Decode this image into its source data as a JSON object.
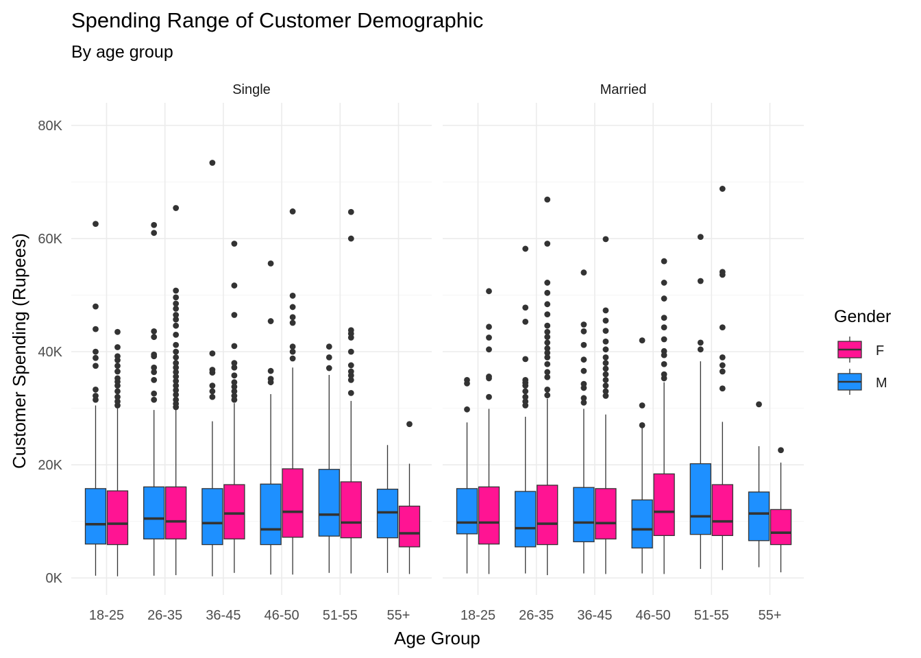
{
  "chart_data": {
    "type": "boxplot",
    "title": "Spending Range of Customer Demographic",
    "subtitle": "By age group",
    "xlabel": "Age Group",
    "ylabel": "Customer Spending (Rupees)",
    "ylim": [
      -3000,
      84000
    ],
    "yticks": [
      0,
      20000,
      40000,
      60000,
      80000
    ],
    "ytick_labels": [
      "0K",
      "20K",
      "40K",
      "60K",
      "80K"
    ],
    "categories": [
      "18-25",
      "26-35",
      "36-45",
      "46-50",
      "51-55",
      "55+"
    ],
    "grid": true,
    "legend": {
      "title": "Gender",
      "position": "right",
      "entries": [
        {
          "label": "F",
          "color": "#FF1493"
        },
        {
          "label": "M",
          "color": "#1E90FF"
        }
      ]
    },
    "series_order": [
      "M",
      "F"
    ],
    "colors": {
      "M": "#1E90FF",
      "F": "#FF1493"
    },
    "panels": [
      {
        "label": "Single",
        "groups": {
          "18-25": {
            "M": {
              "q1": 6000,
              "median": 9500,
              "q3": 15800,
              "whisker_low": 400,
              "whisker_high": 30500,
              "outliers": [
                31500,
                32200,
                33300,
                37500,
                38900,
                40000,
                44000,
                48000,
                62600
              ]
            },
            "F": {
              "q1": 5900,
              "median": 9600,
              "q3": 15400,
              "whisker_low": 300,
              "whisker_high": 30000,
              "outliers": [
                30500,
                31200,
                32000,
                33000,
                34000,
                34700,
                35300,
                36500,
                37500,
                38500,
                39200,
                40800,
                43500
              ]
            }
          },
          "26-35": {
            "M": {
              "q1": 6900,
              "median": 10500,
              "q3": 16100,
              "whisker_low": 400,
              "whisker_high": 29700,
              "outliers": [
                31500,
                32600,
                35000,
                36400,
                37200,
                39200,
                39500,
                42600,
                43600,
                61000,
                62400
              ]
            },
            "F": {
              "q1": 6900,
              "median": 10000,
              "q3": 16100,
              "whisker_low": 500,
              "whisker_high": 29900,
              "outliers": [
                30200,
                30800,
                31500,
                32400,
                33200,
                34000,
                34800,
                35600,
                36400,
                37200,
                38000,
                39000,
                40000,
                41200,
                43000,
                44600,
                45700,
                46500,
                47600,
                48500,
                49600,
                50800,
                65400
              ]
            }
          },
          "36-45": {
            "M": {
              "q1": 5900,
              "median": 9700,
              "q3": 15800,
              "whisker_low": 300,
              "whisker_high": 27700,
              "outliers": [
                32000,
                33000,
                34000,
                36300,
                36800,
                39700,
                73400
              ]
            },
            "F": {
              "q1": 6900,
              "median": 11400,
              "q3": 16500,
              "whisker_low": 900,
              "whisker_high": 30900,
              "outliers": [
                31500,
                32200,
                33000,
                33800,
                34600,
                35800,
                37200,
                38000,
                41000,
                46500,
                51700,
                59100
              ]
            }
          },
          "46-50": {
            "M": {
              "q1": 5900,
              "median": 8600,
              "q3": 16600,
              "whisker_low": 600,
              "whisker_high": 32500,
              "outliers": [
                34600,
                35200,
                36600,
                45400,
                55600
              ]
            },
            "F": {
              "q1": 7200,
              "median": 11700,
              "q3": 19300,
              "whisker_low": 600,
              "whisker_high": 37200,
              "outliers": [
                38800,
                40000,
                40900,
                45100,
                46100,
                47900,
                49900,
                64800
              ]
            }
          },
          "51-55": {
            "M": {
              "q1": 7400,
              "median": 11200,
              "q3": 19200,
              "whisker_low": 900,
              "whisker_high": 35900,
              "outliers": [
                37100,
                39000,
                40900
              ]
            },
            "F": {
              "q1": 7100,
              "median": 9800,
              "q3": 17000,
              "whisker_low": 800,
              "whisker_high": 31300,
              "outliers": [
                32700,
                35000,
                35800,
                36500,
                37600,
                40000,
                42500,
                43200,
                43800,
                60000,
                64700
              ]
            }
          },
          "55+": {
            "M": {
              "q1": 7100,
              "median": 11600,
              "q3": 15700,
              "whisker_low": 900,
              "whisker_high": 23500,
              "outliers": []
            },
            "F": {
              "q1": 5500,
              "median": 7900,
              "q3": 12700,
              "whisker_low": 700,
              "whisker_high": 20200,
              "outliers": [
                27200
              ]
            }
          }
        }
      },
      {
        "label": "Married",
        "groups": {
          "18-25": {
            "M": {
              "q1": 7800,
              "median": 9800,
              "q3": 15800,
              "whisker_low": 800,
              "whisker_high": 27500,
              "outliers": [
                29800,
                34400,
                35000
              ]
            },
            "F": {
              "q1": 6000,
              "median": 9800,
              "q3": 16100,
              "whisker_low": 700,
              "whisker_high": 29900,
              "outliers": [
                32000,
                35300,
                35600,
                40400,
                42500,
                44400,
                50700
              ]
            }
          },
          "26-35": {
            "M": {
              "q1": 5500,
              "median": 8800,
              "q3": 15300,
              "whisker_low": 800,
              "whisker_high": 28500,
              "outliers": [
                30500,
                31200,
                32000,
                33000,
                34000,
                34500,
                35000,
                38700,
                45300,
                47800,
                58200
              ]
            },
            "F": {
              "q1": 5900,
              "median": 9600,
              "q3": 16400,
              "whisker_low": 500,
              "whisker_high": 31700,
              "outliers": [
                32300,
                33300,
                35500,
                36400,
                37800,
                39000,
                39800,
                40600,
                41600,
                42600,
                43500,
                44600,
                46600,
                48400,
                50400,
                52200,
                59100,
                66900
              ]
            }
          },
          "36-45": {
            "M": {
              "q1": 6400,
              "median": 9800,
              "q3": 16000,
              "whisker_low": 800,
              "whisker_high": 29900,
              "outliers": [
                31000,
                31800,
                33600,
                34300,
                36600,
                38600,
                41200,
                43600,
                44800,
                54000
              ]
            },
            "F": {
              "q1": 6900,
              "median": 9700,
              "q3": 15800,
              "whisker_low": 700,
              "whisker_high": 28900,
              "outliers": [
                32200,
                33000,
                34000,
                35000,
                36000,
                37000,
                38000,
                39000,
                40400,
                41800,
                43700,
                45500,
                47300,
                59900
              ]
            }
          },
          "46-50": {
            "M": {
              "q1": 5300,
              "median": 8600,
              "q3": 13800,
              "whisker_low": 800,
              "whisker_high": 26700,
              "outliers": [
                27000,
                30500,
                42000
              ]
            },
            "F": {
              "q1": 7500,
              "median": 11700,
              "q3": 18400,
              "whisker_low": 700,
              "whisker_high": 34600,
              "outliers": [
                35300,
                36000,
                37800,
                39400,
                40100,
                42200,
                44300,
                46000,
                49400,
                52200,
                56000
              ]
            }
          },
          "51-55": {
            "M": {
              "q1": 7700,
              "median": 10900,
              "q3": 20200,
              "whisker_low": 1600,
              "whisker_high": 38300,
              "outliers": [
                40400,
                41600,
                52500,
                60300
              ]
            },
            "F": {
              "q1": 7500,
              "median": 10000,
              "q3": 16500,
              "whisker_low": 1400,
              "whisker_high": 27600,
              "outliers": [
                33500,
                36500,
                37600,
                39000,
                44300,
                53600,
                54100,
                68800
              ]
            }
          },
          "55+": {
            "M": {
              "q1": 6600,
              "median": 11400,
              "q3": 15200,
              "whisker_low": 1900,
              "whisker_high": 23300,
              "outliers": [
                30700
              ]
            },
            "F": {
              "q1": 5900,
              "median": 8000,
              "q3": 12100,
              "whisker_low": 1000,
              "whisker_high": 20400,
              "outliers": [
                22600
              ]
            }
          }
        }
      }
    ]
  }
}
